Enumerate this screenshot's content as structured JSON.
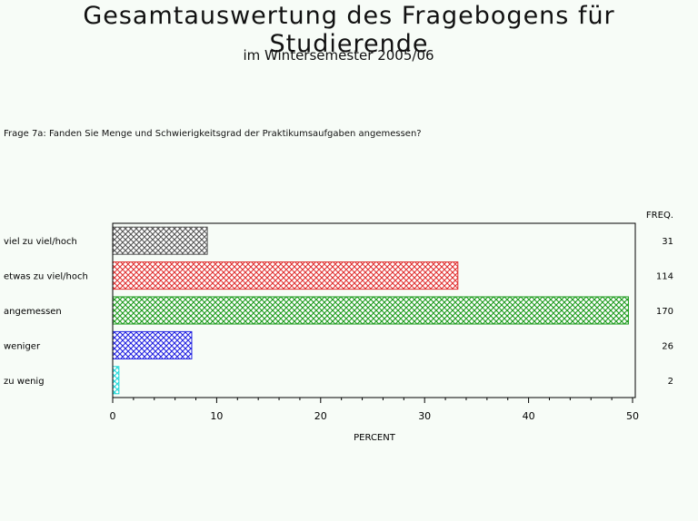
{
  "title": "Gesamtauswertung des Fragebogens für Studierende",
  "subtitle": "im Wintersemester 2005/06",
  "question": "Frage 7a: Fanden Sie Menge und Schwierigkeitsgrad der Praktikumsaufgaben angemessen?",
  "chart_data": {
    "type": "bar",
    "orientation": "horizontal",
    "categories": [
      "viel zu viel/hoch",
      "etwas zu viel/hoch",
      "angemessen",
      "weniger",
      "zu wenig"
    ],
    "values": [
      9.1,
      33.2,
      49.6,
      7.6,
      0.6
    ],
    "freq_header": "FREQ.",
    "freq": [
      "31",
      "114",
      "170",
      "26",
      "2"
    ],
    "bar_colors": [
      "#555555",
      "#e03030",
      "#1a9a1a",
      "#2020e0",
      "#20d8d8"
    ],
    "xlabel": "PERCENT",
    "xlim": [
      0,
      50
    ],
    "xticks": [
      "0",
      "10",
      "20",
      "30",
      "40",
      "50"
    ],
    "grid": false
  }
}
